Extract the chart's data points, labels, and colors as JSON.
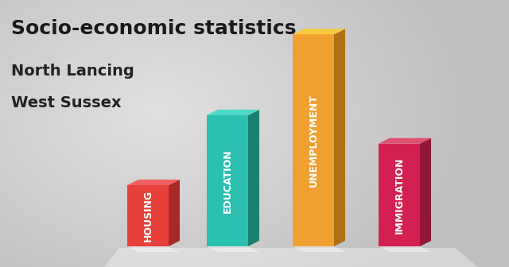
{
  "title": "Socio-economic statistics",
  "subtitle1": "North Lancing",
  "subtitle2": "West Sussex",
  "categories": [
    "HOUSING",
    "EDUCATION",
    "UNEMPLOYMENT",
    "IMMIGRATION"
  ],
  "values": [
    0.28,
    0.6,
    0.97,
    0.47
  ],
  "front_colors": [
    "#E8403A",
    "#2BBFB0",
    "#F0A030",
    "#D42050"
  ],
  "side_colors": [
    "#A82828",
    "#1A8070",
    "#B07018",
    "#901838"
  ],
  "top_colors": [
    "#F06060",
    "#50D8C8",
    "#F8C840",
    "#E05070"
  ],
  "title_fontsize": 18,
  "subtitle_fontsize": 14,
  "label_fontsize": 9
}
